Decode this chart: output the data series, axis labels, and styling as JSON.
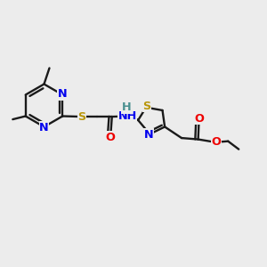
{
  "bg_color": "#ececec",
  "bond_color": "#1a1a1a",
  "bond_lw": 1.7,
  "atom_colors": {
    "N": "#0000ee",
    "S": "#b8960a",
    "O": "#ee0000",
    "H": "#4a9090",
    "C": "#1a1a1a"
  },
  "afs": 9.2,
  "fig_w": 3.0,
  "fig_h": 3.0,
  "dpi": 100
}
